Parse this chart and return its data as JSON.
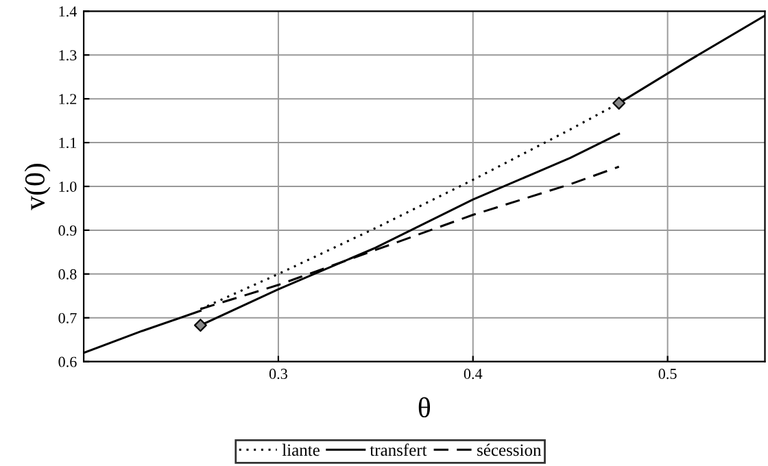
{
  "chart_data": {
    "type": "line",
    "xlabel": "θ",
    "ylabel": "v(0)",
    "xlim": [
      0.2,
      0.55
    ],
    "ylim": [
      0.6,
      1.4
    ],
    "xticks": [
      0.3,
      0.4,
      0.5
    ],
    "yticks": [
      0.6,
      0.7,
      0.8,
      0.9,
      {
        "value": 1,
        "label": "1.0"
      },
      1.1,
      1.2,
      1.3,
      1.4
    ],
    "grid": true,
    "legend": "bottom",
    "series": [
      {
        "name": "liante",
        "color": "#000000",
        "line_style": "dotted",
        "x": [
          0.26,
          0.3,
          0.35,
          0.4,
          0.45,
          0.475
        ],
        "values": [
          0.72,
          0.8,
          0.905,
          1.015,
          1.13,
          1.19
        ]
      },
      {
        "name": "transfert",
        "color": "#000000",
        "line_style": "solid",
        "x": [
          0.26,
          0.3,
          0.35,
          0.4,
          0.45,
          0.475
        ],
        "values": [
          0.683,
          0.765,
          0.86,
          0.97,
          1.065,
          1.12
        ]
      },
      {
        "name": "sécession",
        "color": "#000000",
        "line_style": "dashed",
        "x": [
          0.26,
          0.3,
          0.35,
          0.4,
          0.45,
          0.475
        ],
        "values": [
          0.72,
          0.775,
          0.855,
          0.935,
          1.005,
          1.045
        ]
      },
      {
        "color": "#000000",
        "line_style": "solid",
        "x": [
          0.2,
          0.23,
          0.26,
          0.37,
          0.475,
          0.51,
          0.55
        ],
        "values": [
          0.62,
          0.67,
          0.716,
          null,
          1.19,
          1.285,
          1.39
        ]
      },
      {
        "type": "scatter",
        "color": "#000000",
        "marker": "diamond",
        "x": [
          0.26,
          0.475
        ],
        "values": [
          0.683,
          1.19
        ]
      }
    ]
  }
}
